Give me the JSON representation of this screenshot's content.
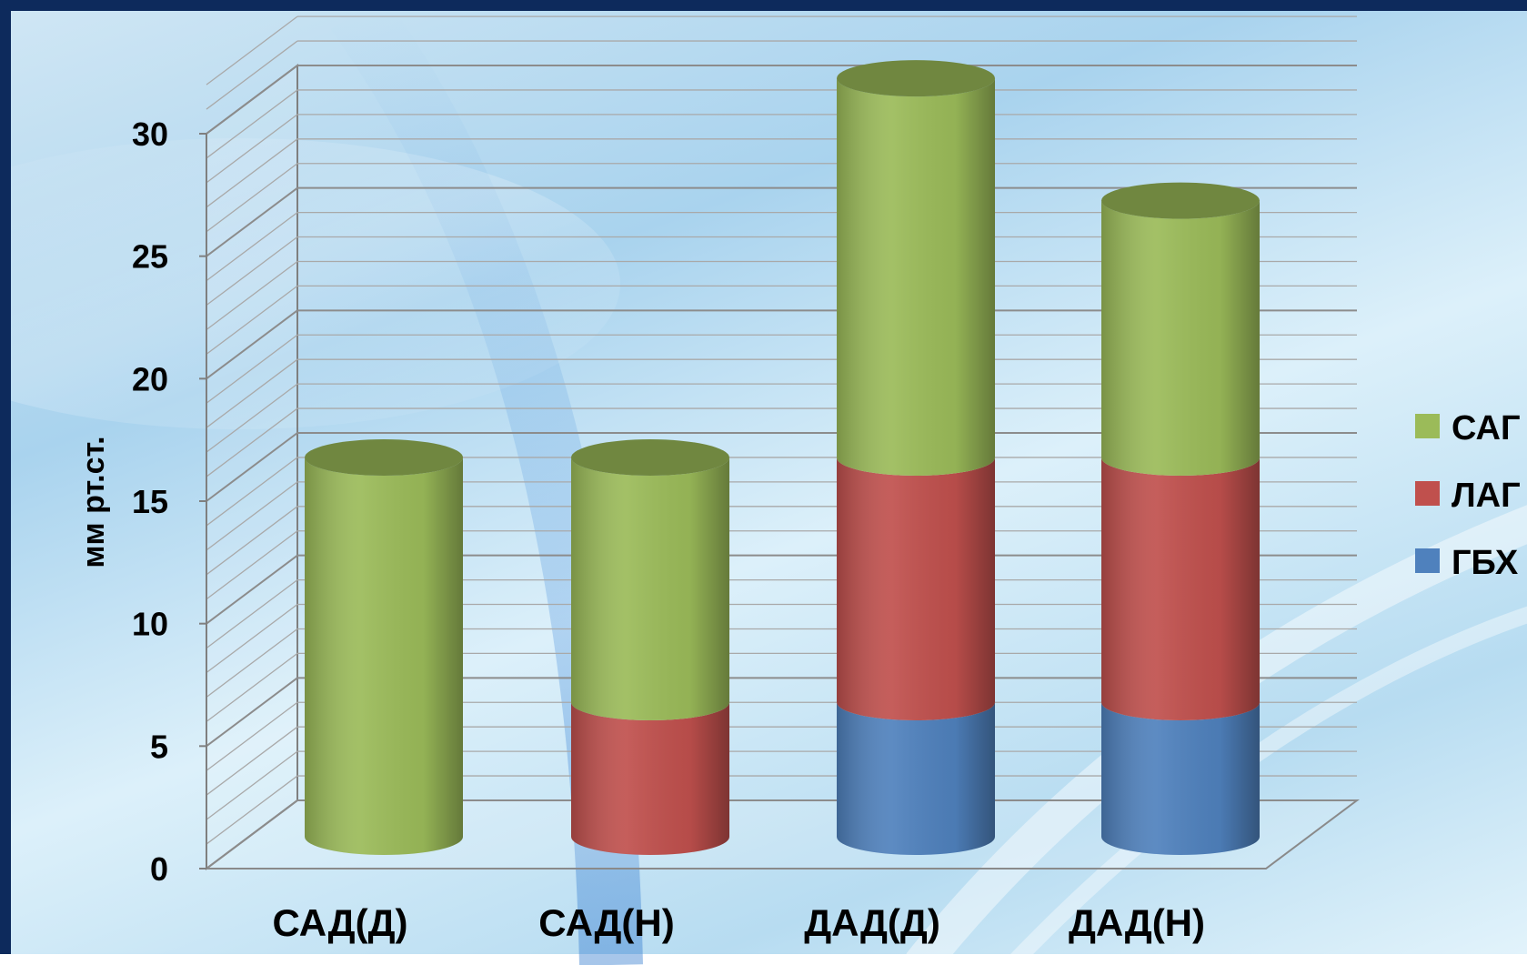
{
  "chart_data": {
    "type": "bar",
    "stacked": true,
    "style": "3d-cylinder",
    "categories": [
      "САД(Д)",
      "САД(Н)",
      "ДАД(Д)",
      "ДАД(Н)"
    ],
    "series": [
      {
        "name": "ГБХ",
        "color": "#4f81bd",
        "values": [
          0,
          0,
          5.5,
          5.5
        ]
      },
      {
        "name": "ЛАГ",
        "color": "#c0504d",
        "values": [
          0,
          5.5,
          10,
          10
        ]
      },
      {
        "name": "САГ",
        "color": "#9bbb59",
        "values": [
          15.5,
          10,
          15.5,
          10.5
        ]
      }
    ],
    "ylabel": "мм рт.ст.",
    "ylim": [
      0,
      30
    ],
    "yticks": [
      "0",
      "5",
      "10",
      "15",
      "20",
      "25",
      "30"
    ],
    "legend_position": "right",
    "legend_order": [
      "САГ",
      "ЛАГ",
      "ГБХ"
    ],
    "grid": true
  }
}
